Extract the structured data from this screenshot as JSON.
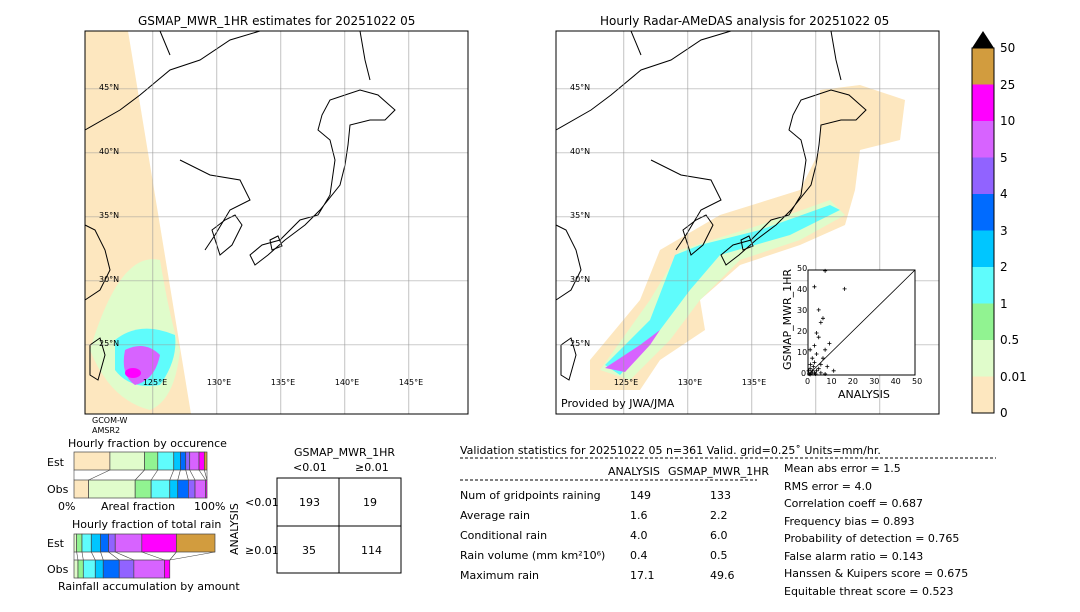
{
  "left_map": {
    "title": "GSMAP_MWR_1HR estimates for 20251022 05",
    "sensor": [
      "GCOM-W",
      "AMSR2"
    ]
  },
  "right_map": {
    "title": "Hourly Radar-AMeDAS analysis for 20251022 05",
    "credit": "Provided by JWA/JMA"
  },
  "lat_labels": [
    "25°N",
    "30°N",
    "35°N",
    "40°N",
    "45°N"
  ],
  "lon_labels": [
    "125°E",
    "130°E",
    "135°E",
    "140°E",
    "145°E"
  ],
  "colorbar": {
    "ticks": [
      "0",
      "0.01",
      "0.5",
      "1",
      "2",
      "3",
      "4",
      "5",
      "10",
      "25",
      "50"
    ],
    "colors": [
      "#fde7bf",
      "#e0fccb",
      "#91f391",
      "#5ffcfc",
      "#00c6ff",
      "#006bff",
      "#9163ff",
      "#d763ff",
      "#ff00ff",
      "#d29c3e"
    ],
    "extend_color": "#000000"
  },
  "chart_data": [
    {
      "type": "scatter",
      "xlabel": "ANALYSIS",
      "ylabel": "GSMAP_MWR_1HR",
      "xlim": [
        0,
        50
      ],
      "ylim": [
        0,
        50
      ],
      "ticks": [
        "0",
        "10",
        "20",
        "30",
        "40",
        "50"
      ],
      "points": [
        [
          0.5,
          0.5
        ],
        [
          1,
          0.3
        ],
        [
          1.5,
          1
        ],
        [
          2,
          2
        ],
        [
          1,
          3
        ],
        [
          3,
          1
        ],
        [
          2.5,
          4
        ],
        [
          4,
          2
        ],
        [
          3,
          6
        ],
        [
          5,
          3
        ],
        [
          2,
          8
        ],
        [
          4,
          10
        ],
        [
          6,
          5
        ],
        [
          1,
          12
        ],
        [
          3,
          14
        ],
        [
          5,
          18
        ],
        [
          7,
          8
        ],
        [
          8,
          12
        ],
        [
          9,
          4
        ],
        [
          10,
          15
        ],
        [
          4,
          20
        ],
        [
          6,
          25
        ],
        [
          7,
          27
        ],
        [
          5,
          31
        ],
        [
          3,
          42
        ],
        [
          17.1,
          41
        ],
        [
          8,
          49.6
        ],
        [
          12,
          2
        ],
        [
          2,
          1
        ],
        [
          0.3,
          2
        ],
        [
          1.2,
          5
        ],
        [
          6,
          1
        ],
        [
          3.5,
          0.5
        ],
        [
          8,
          0.5
        ]
      ]
    },
    {
      "type": "bar",
      "title": "Hourly fraction by occurence",
      "xlabel": "Areal fraction",
      "xticks": [
        "0%",
        "100%"
      ],
      "series": [
        {
          "name": "Est",
          "values": [
            27,
            26,
            10,
            12,
            5,
            4,
            3,
            7,
            4,
            2
          ]
        },
        {
          "name": "Obs",
          "values": [
            11,
            35,
            12,
            14,
            6,
            8,
            5,
            8,
            1,
            0
          ]
        }
      ]
    },
    {
      "type": "bar",
      "title": "Hourly fraction of total rain",
      "xlabel": "Rainfall accumulation by amount",
      "series": [
        {
          "name": "Est",
          "values": [
            2,
            4,
            7,
            7,
            6,
            5,
            20,
            26,
            29
          ]
        },
        {
          "name": "Obs",
          "values": [
            3,
            4,
            9,
            6,
            12,
            11,
            23,
            4,
            0
          ]
        }
      ]
    }
  ],
  "contingency": {
    "title": "GSMAP_MWR_1HR",
    "col_headers": [
      "<0.01",
      "≥0.01"
    ],
    "row_label": "ANALYSIS",
    "row_headers": [
      "<0.01",
      "≥0.01"
    ],
    "cells": [
      [
        "193",
        "19"
      ],
      [
        "35",
        "114"
      ]
    ]
  },
  "stats": {
    "title": "Validation statistics for 20251022 05  n=361 Valid. grid=0.25˚ Units=mm/hr.",
    "col_headers": [
      "ANALYSIS",
      "GSMAP_MWR_1HR"
    ],
    "rows": [
      {
        "label": "Num of gridpoints raining",
        "a": "149",
        "g": "133"
      },
      {
        "label": "Average rain",
        "a": "1.6",
        "g": "2.2"
      },
      {
        "label": "Conditional rain",
        "a": "4.0",
        "g": "6.0"
      },
      {
        "label": "Rain volume (mm km²10⁶)",
        "a": "0.4",
        "g": "0.5"
      },
      {
        "label": "Maximum rain",
        "a": "17.1",
        "g": "49.6"
      }
    ],
    "scores": [
      "Mean abs error =    1.5",
      "RMS error =    4.0",
      "Correlation coeff =  0.687",
      "Frequency bias =  0.893",
      "Probability of detection =  0.765",
      "False alarm ratio =  0.143",
      "Hanssen & Kuipers score =  0.675",
      "Equitable threat score =  0.523"
    ]
  }
}
